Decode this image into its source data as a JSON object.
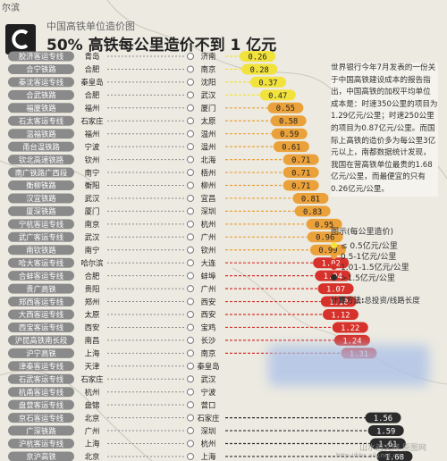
{
  "corner_text": "尔滨",
  "subtitle": "中国高铁单位造价图",
  "title": "50% 高铁每公里造价不到 1 亿元",
  "note": "世界银行今年7月发表的一份关于中国高铁建设成本的报告指出，中国高铁的加权平均单位成本是：时速350公里的项目为1.29亿元/公里；时速250公里的项目为0.87亿元/公里。而国际上高铁的造价多为每公里3亿元以上，南都数据统计发现，我国在营高铁单位最贵的1.68亿元/公里，而最便宜的只有0.26亿元/公里。",
  "legend": {
    "title": "图示(每公里造价)",
    "items": [
      {
        "label": "≤ 0.5亿元/公里",
        "color": "#f2e33c"
      },
      {
        "label": "0.5-1亿元/公里",
        "color": "#eba13a"
      },
      {
        "label": "1.01-1.5亿元/公里",
        "color": "#d6322b"
      },
      {
        "label": ">1.5亿元/公里",
        "color": "#2b2b2b"
      }
    ]
  },
  "method": {
    "label": "计算方法:",
    "text": "总投资/线路长度"
  },
  "watermarks": [
    "山水画文网 原图网",
    "http://bbs.aily.net.cn"
  ],
  "chart_data": {
    "type": "bar",
    "unit": "亿元/公里",
    "colors": {
      "le_0_5": "#f2e33c",
      "r_0_5_1": "#eba13a",
      "r_1_1_5": "#d6322b",
      "gt_1_5": "#2b2b2b"
    },
    "rows": [
      {
        "line": "胶济客运专线",
        "from": "青岛",
        "to": "济南",
        "value": 0.26
      },
      {
        "line": "合宁铁路",
        "from": "合肥",
        "to": "南京",
        "value": 0.28
      },
      {
        "line": "秦沈客运专线",
        "from": "秦皇岛",
        "to": "沈阳",
        "value": 0.37
      },
      {
        "line": "合武铁路",
        "from": "合肥",
        "to": "武汉",
        "value": 0.47
      },
      {
        "line": "福厦铁路",
        "from": "福州",
        "to": "厦门",
        "value": 0.55
      },
      {
        "line": "石太客运专线",
        "from": "石家庄",
        "to": "太原",
        "value": 0.58
      },
      {
        "line": "温福铁路",
        "from": "福州",
        "to": "温州",
        "value": 0.59
      },
      {
        "line": "甬台温铁路",
        "from": "宁波",
        "to": "温州",
        "value": 0.61
      },
      {
        "line": "钦北高速铁路",
        "from": "钦州",
        "to": "北海",
        "value": 0.71
      },
      {
        "line": "南广铁路广西段",
        "from": "南宁",
        "to": "梧州",
        "value": 0.71
      },
      {
        "line": "衡柳铁路",
        "from": "衡阳",
        "to": "柳州",
        "value": 0.71
      },
      {
        "line": "汉宜铁路",
        "from": "武汉",
        "to": "宜昌",
        "value": 0.81
      },
      {
        "line": "厦深铁路",
        "from": "厦门",
        "to": "深圳",
        "value": 0.83
      },
      {
        "line": "宁杭客运专线",
        "from": "南京",
        "to": "杭州",
        "value": 0.95
      },
      {
        "line": "武广客运专线",
        "from": "武汉",
        "to": "广州",
        "value": 0.96
      },
      {
        "line": "南钦铁路",
        "from": "南宁",
        "to": "钦州",
        "value": 0.99
      },
      {
        "line": "哈大客运专线",
        "from": "哈尔滨",
        "to": "大连",
        "value": 1.02
      },
      {
        "line": "合蚌客运专线",
        "from": "合肥",
        "to": "蚌埠",
        "value": 1.04
      },
      {
        "line": "贵广高铁",
        "from": "贵阳",
        "to": "广州",
        "value": 1.07
      },
      {
        "line": "郑西客运专线",
        "from": "郑州",
        "to": "西安",
        "value": 1.1
      },
      {
        "line": "大西客运专线",
        "from": "太原",
        "to": "西安",
        "value": 1.12
      },
      {
        "line": "西宝客运专线",
        "from": "西安",
        "to": "宝鸡",
        "value": 1.22
      },
      {
        "line": "沪昆高铁南长段",
        "from": "南昌",
        "to": "长沙",
        "value": 1.24
      },
      {
        "line": "沪宁高铁",
        "from": "上海",
        "to": "南京",
        "value": 1.31
      },
      {
        "line": "津秦客运专线",
        "from": "天津",
        "to": "秦皇岛",
        "value": null
      },
      {
        "line": "石武客运专线",
        "from": "石家庄",
        "to": "武汉",
        "value": null
      },
      {
        "line": "杭甬客运专线",
        "from": "杭州",
        "to": "宁波",
        "value": null
      },
      {
        "line": "盘营客运专线",
        "from": "盘锦",
        "to": "营口",
        "value": null
      },
      {
        "line": "京石客运专线",
        "from": "北京",
        "to": "石家庄",
        "value": 1.56
      },
      {
        "line": "广深铁路",
        "from": "广州",
        "to": "深圳",
        "value": 1.59
      },
      {
        "line": "沪杭客运专线",
        "from": "上海",
        "to": "杭州",
        "value": 1.61
      },
      {
        "line": "京沪高铁",
        "from": "北京",
        "to": "上海",
        "value": 1.68
      }
    ]
  }
}
